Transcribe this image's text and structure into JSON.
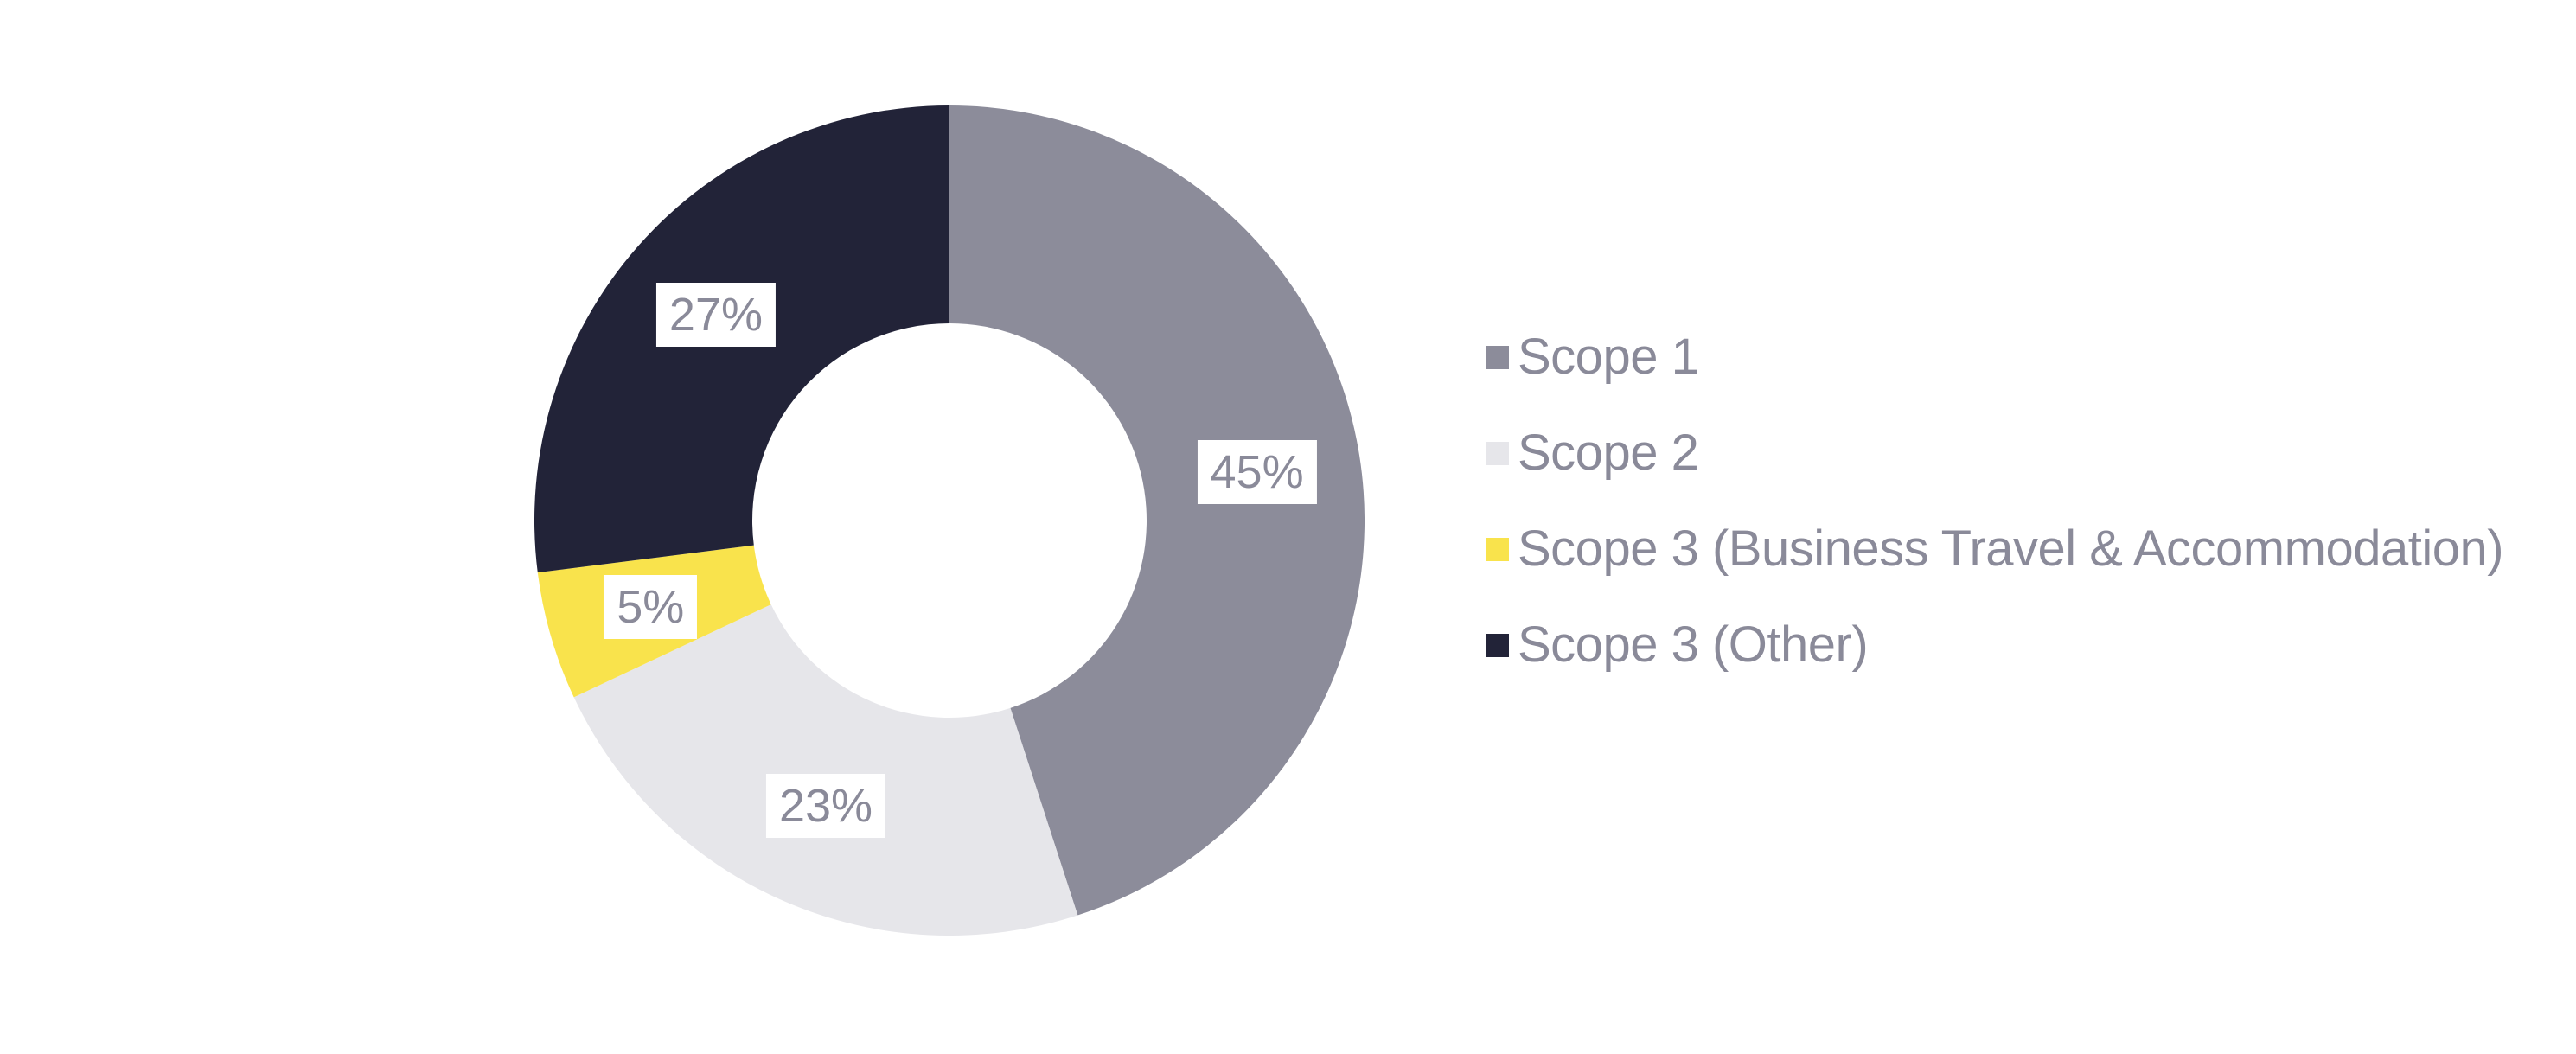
{
  "page": {
    "background": "#FFFFFF"
  },
  "chart_data": {
    "type": "pie",
    "subtype": "donut",
    "title": "",
    "direction": "clockwise",
    "start_angle_deg": 0,
    "unit": "%",
    "legend_position": "right",
    "grid": false,
    "data_label_style": {
      "text_color": "#8A8A99",
      "box_color": "#FFFFFF"
    },
    "categories": [
      "Scope 1",
      "Scope 2",
      "Scope 3 (Business Travel & Accommodation)",
      "Scope 3 (Other)"
    ],
    "values": [
      45,
      23,
      5,
      27
    ],
    "slices": [
      {
        "label": "Scope 1",
        "value": 45,
        "percent_label": "45%",
        "color": "#8C8C9A"
      },
      {
        "label": "Scope 2",
        "value": 23,
        "percent_label": "23%",
        "color": "#E6E6EA"
      },
      {
        "label": "Scope 3 (Business Travel & Accommodation)",
        "value": 5,
        "percent_label": "5%",
        "color": "#F9E34C"
      },
      {
        "label": "Scope 3 (Other)",
        "value": 27,
        "percent_label": "27%",
        "color": "#222338"
      }
    ]
  }
}
